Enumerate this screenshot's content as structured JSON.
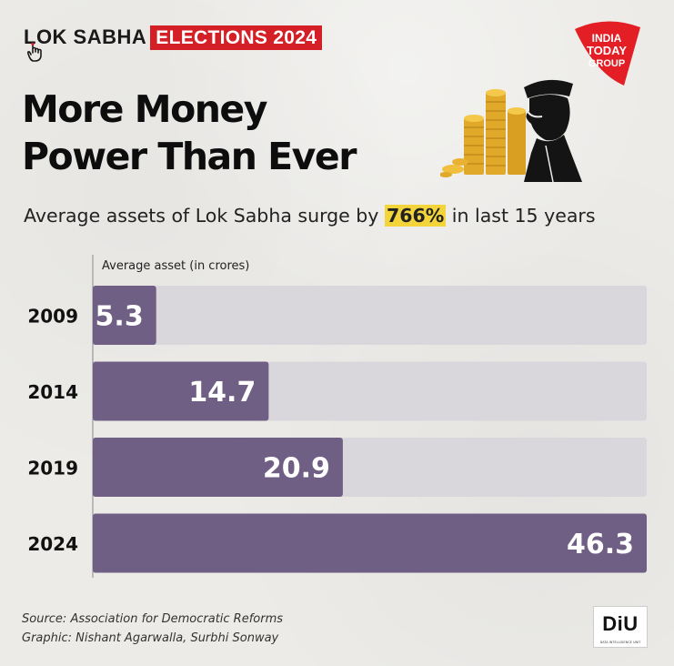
{
  "header": {
    "brand_lok": "LOK SABHA",
    "brand_elections": "ELECTIONS 2024",
    "logo_line1": "INDIA",
    "logo_line2": "TODAY",
    "logo_line3": "GROUP"
  },
  "headline": {
    "line1": "More Money",
    "line2": "Power Than Ever"
  },
  "subtitle": {
    "before": "Average assets of Lok Sabha surge by ",
    "highlight": "766%",
    "after": " in last 15 years"
  },
  "chart_data": {
    "type": "bar",
    "orientation": "horizontal",
    "axis_label": "Average asset (in crores)",
    "categories": [
      "2009",
      "2014",
      "2019",
      "2024"
    ],
    "values": [
      5.3,
      14.7,
      20.9,
      46.3
    ],
    "value_labels": [
      "5.3",
      "14.7",
      "20.9",
      "46.3"
    ],
    "xlim": [
      0,
      46.3
    ],
    "grid": false,
    "bar_color": "#6f5f84",
    "track_color": "#d9d6dc"
  },
  "footer": {
    "source": "Source: Association for Democratic Reforms",
    "graphic": "Graphic: Nishant Agarwalla, Surbhi Sonway",
    "diu_logo": "DiU",
    "diu_sub": "DATA INTELLIGENCE UNIT"
  },
  "colors": {
    "accent_red": "#d51f26",
    "highlight_yellow": "#f3d43a"
  }
}
